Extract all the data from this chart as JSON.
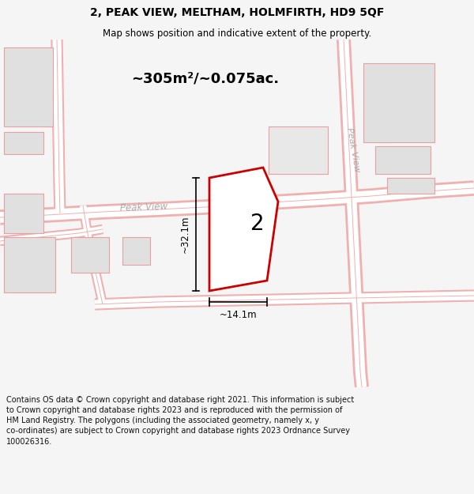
{
  "title": "2, PEAK VIEW, MELTHAM, HOLMFIRTH, HD9 5QF",
  "subtitle": "Map shows position and indicative extent of the property.",
  "area_label": "~305m²/~0.075ac.",
  "plot_number": "2",
  "dim_width": "~14.1m",
  "dim_height": "~32.1m",
  "footer": "Contains OS data © Crown copyright and database right 2021. This information is subject to Crown copyright and database rights 2023 and is reproduced with the permission of HM Land Registry. The polygons (including the associated geometry, namely x, y co-ordinates) are subject to Crown copyright and database rights 2023 Ordnance Survey 100026316.",
  "bg_color": "#f5f5f5",
  "map_bg": "#ffffff",
  "property_outline_color": "#cc0000",
  "road_label": "Peak View",
  "road_label_diagonal": "Peak View",
  "title_fontsize": 10,
  "subtitle_fontsize": 8.5,
  "footer_fontsize": 7.0,
  "area_fontsize": 13,
  "road_color_outer": "#f0b0b0",
  "road_color_inner": "#ffffff",
  "bld_fc": "#e0e0e0",
  "bld_ec": "#e8a0a0"
}
